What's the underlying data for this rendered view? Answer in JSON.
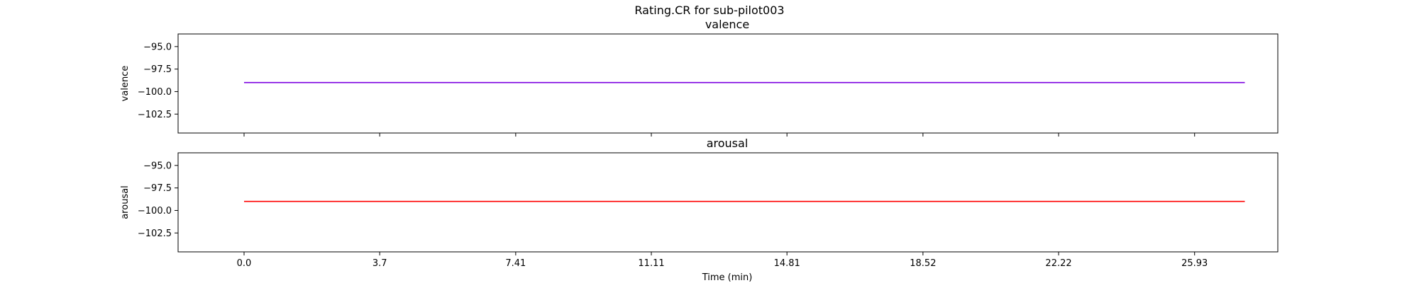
{
  "chart_data": {
    "type": "line",
    "title": "Rating.CR for sub-pilot003",
    "xlabel": "Time (min)",
    "xlim": [
      -1.8,
      28.2
    ],
    "x_ticks": [
      0.0,
      3.7,
      7.41,
      11.11,
      14.81,
      18.52,
      22.22,
      25.93
    ],
    "x_tick_labels": [
      "0.0",
      "3.7",
      "7.41",
      "11.11",
      "14.81",
      "18.52",
      "22.22",
      "25.93"
    ],
    "panels": [
      {
        "title": "valence",
        "ylabel": "valence",
        "ylim": [
          -104.6,
          -93.6
        ],
        "y_ticks": [
          -95.0,
          -97.5,
          -100.0,
          -102.5
        ],
        "y_tick_labels": [
          "−95.0",
          "−97.5",
          "−100.0",
          "−102.5"
        ],
        "series": [
          {
            "color": "#7b00e0",
            "x": [
              0.0,
              27.3
            ],
            "y": [
              -99.0,
              -99.0
            ]
          }
        ]
      },
      {
        "title": "arousal",
        "ylabel": "arousal",
        "ylim": [
          -104.6,
          -93.6
        ],
        "y_ticks": [
          -95.0,
          -97.5,
          -100.0,
          -102.5
        ],
        "y_tick_labels": [
          "−95.0",
          "−97.5",
          "−100.0",
          "−102.5"
        ],
        "series": [
          {
            "color": "#ff0000",
            "x": [
              0.0,
              27.3
            ],
            "y": [
              -99.0,
              -99.0
            ]
          }
        ]
      }
    ]
  }
}
